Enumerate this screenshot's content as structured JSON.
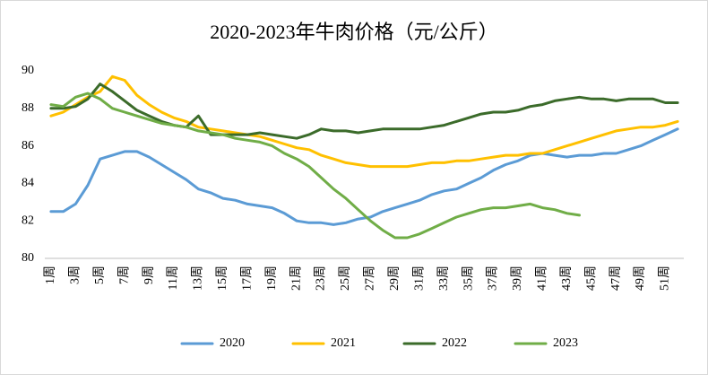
{
  "chart_data": {
    "type": "line",
    "title": "2020-2023年牛肉价格（元/公斤）",
    "categories": [
      "1周",
      null,
      "3周",
      null,
      "5周",
      null,
      "7周",
      null,
      "9周",
      null,
      "11周",
      null,
      "13周",
      null,
      "15周",
      null,
      "17周",
      null,
      "19周",
      null,
      "21周",
      null,
      "23周",
      null,
      "25周",
      null,
      "27周",
      null,
      "29周",
      null,
      "31周",
      null,
      "33周",
      null,
      "35周",
      null,
      "37周",
      null,
      "39周",
      null,
      "41周",
      null,
      "43周",
      null,
      "45周",
      null,
      "47周",
      null,
      "49周",
      null,
      "51周",
      null
    ],
    "ylim": [
      80,
      90
    ],
    "yticks": [
      80,
      82,
      84,
      86,
      88,
      90
    ],
    "grid": false,
    "legend": "bottom",
    "series": [
      {
        "name": "2020",
        "color": "#5b9bd5",
        "values": [
          82.5,
          82.5,
          82.9,
          83.9,
          85.3,
          85.5,
          85.7,
          85.7,
          85.4,
          85.0,
          84.6,
          84.2,
          83.7,
          83.5,
          83.2,
          83.1,
          82.9,
          82.8,
          82.7,
          82.4,
          82.0,
          81.9,
          81.9,
          81.8,
          81.9,
          82.1,
          82.2,
          82.5,
          82.7,
          82.9,
          83.1,
          83.4,
          83.6,
          83.7,
          84.0,
          84.3,
          84.7,
          85.0,
          85.2,
          85.5,
          85.6,
          85.5,
          85.4,
          85.5,
          85.5,
          85.6,
          85.6,
          85.8,
          86.0,
          86.3,
          86.6,
          86.9
        ]
      },
      {
        "name": "2021",
        "color": "#ffc000",
        "values": [
          87.6,
          87.8,
          88.2,
          88.6,
          88.9,
          89.7,
          89.5,
          88.7,
          88.2,
          87.8,
          87.5,
          87.3,
          87.0,
          86.9,
          86.8,
          86.7,
          86.6,
          86.5,
          86.3,
          86.1,
          85.9,
          85.8,
          85.5,
          85.3,
          85.1,
          85.0,
          84.9,
          84.9,
          84.9,
          84.9,
          85.0,
          85.1,
          85.1,
          85.2,
          85.2,
          85.3,
          85.4,
          85.5,
          85.5,
          85.6,
          85.6,
          85.8,
          86.0,
          86.2,
          86.4,
          86.6,
          86.8,
          86.9,
          87.0,
          87.0,
          87.1,
          87.3
        ]
      },
      {
        "name": "2022",
        "color": "#3b6b2a",
        "values": [
          88.0,
          88.0,
          88.1,
          88.5,
          89.3,
          88.9,
          88.4,
          87.9,
          87.6,
          87.3,
          87.1,
          87.0,
          87.6,
          86.6,
          86.6,
          86.6,
          86.6,
          86.7,
          86.6,
          86.5,
          86.4,
          86.6,
          86.9,
          86.8,
          86.8,
          86.7,
          86.8,
          86.9,
          86.9,
          86.9,
          86.9,
          87.0,
          87.1,
          87.3,
          87.5,
          87.7,
          87.8,
          87.8,
          87.9,
          88.1,
          88.2,
          88.4,
          88.5,
          88.6,
          88.5,
          88.5,
          88.4,
          88.5,
          88.5,
          88.5,
          88.3,
          88.3
        ]
      },
      {
        "name": "2023",
        "color": "#70ad47",
        "values": [
          88.2,
          88.1,
          88.6,
          88.8,
          88.5,
          88.0,
          87.8,
          87.6,
          87.4,
          87.2,
          87.1,
          87.0,
          86.8,
          86.7,
          86.6,
          86.4,
          86.3,
          86.2,
          86.0,
          85.6,
          85.3,
          84.9,
          84.3,
          83.7,
          83.2,
          82.6,
          82.0,
          81.5,
          81.1,
          81.1,
          81.3,
          81.6,
          81.9,
          82.2,
          82.4,
          82.6,
          82.7,
          82.7,
          82.8,
          82.9,
          82.7,
          82.6,
          82.4,
          82.3,
          null,
          null,
          null,
          null,
          null,
          null,
          null,
          null
        ]
      }
    ]
  }
}
